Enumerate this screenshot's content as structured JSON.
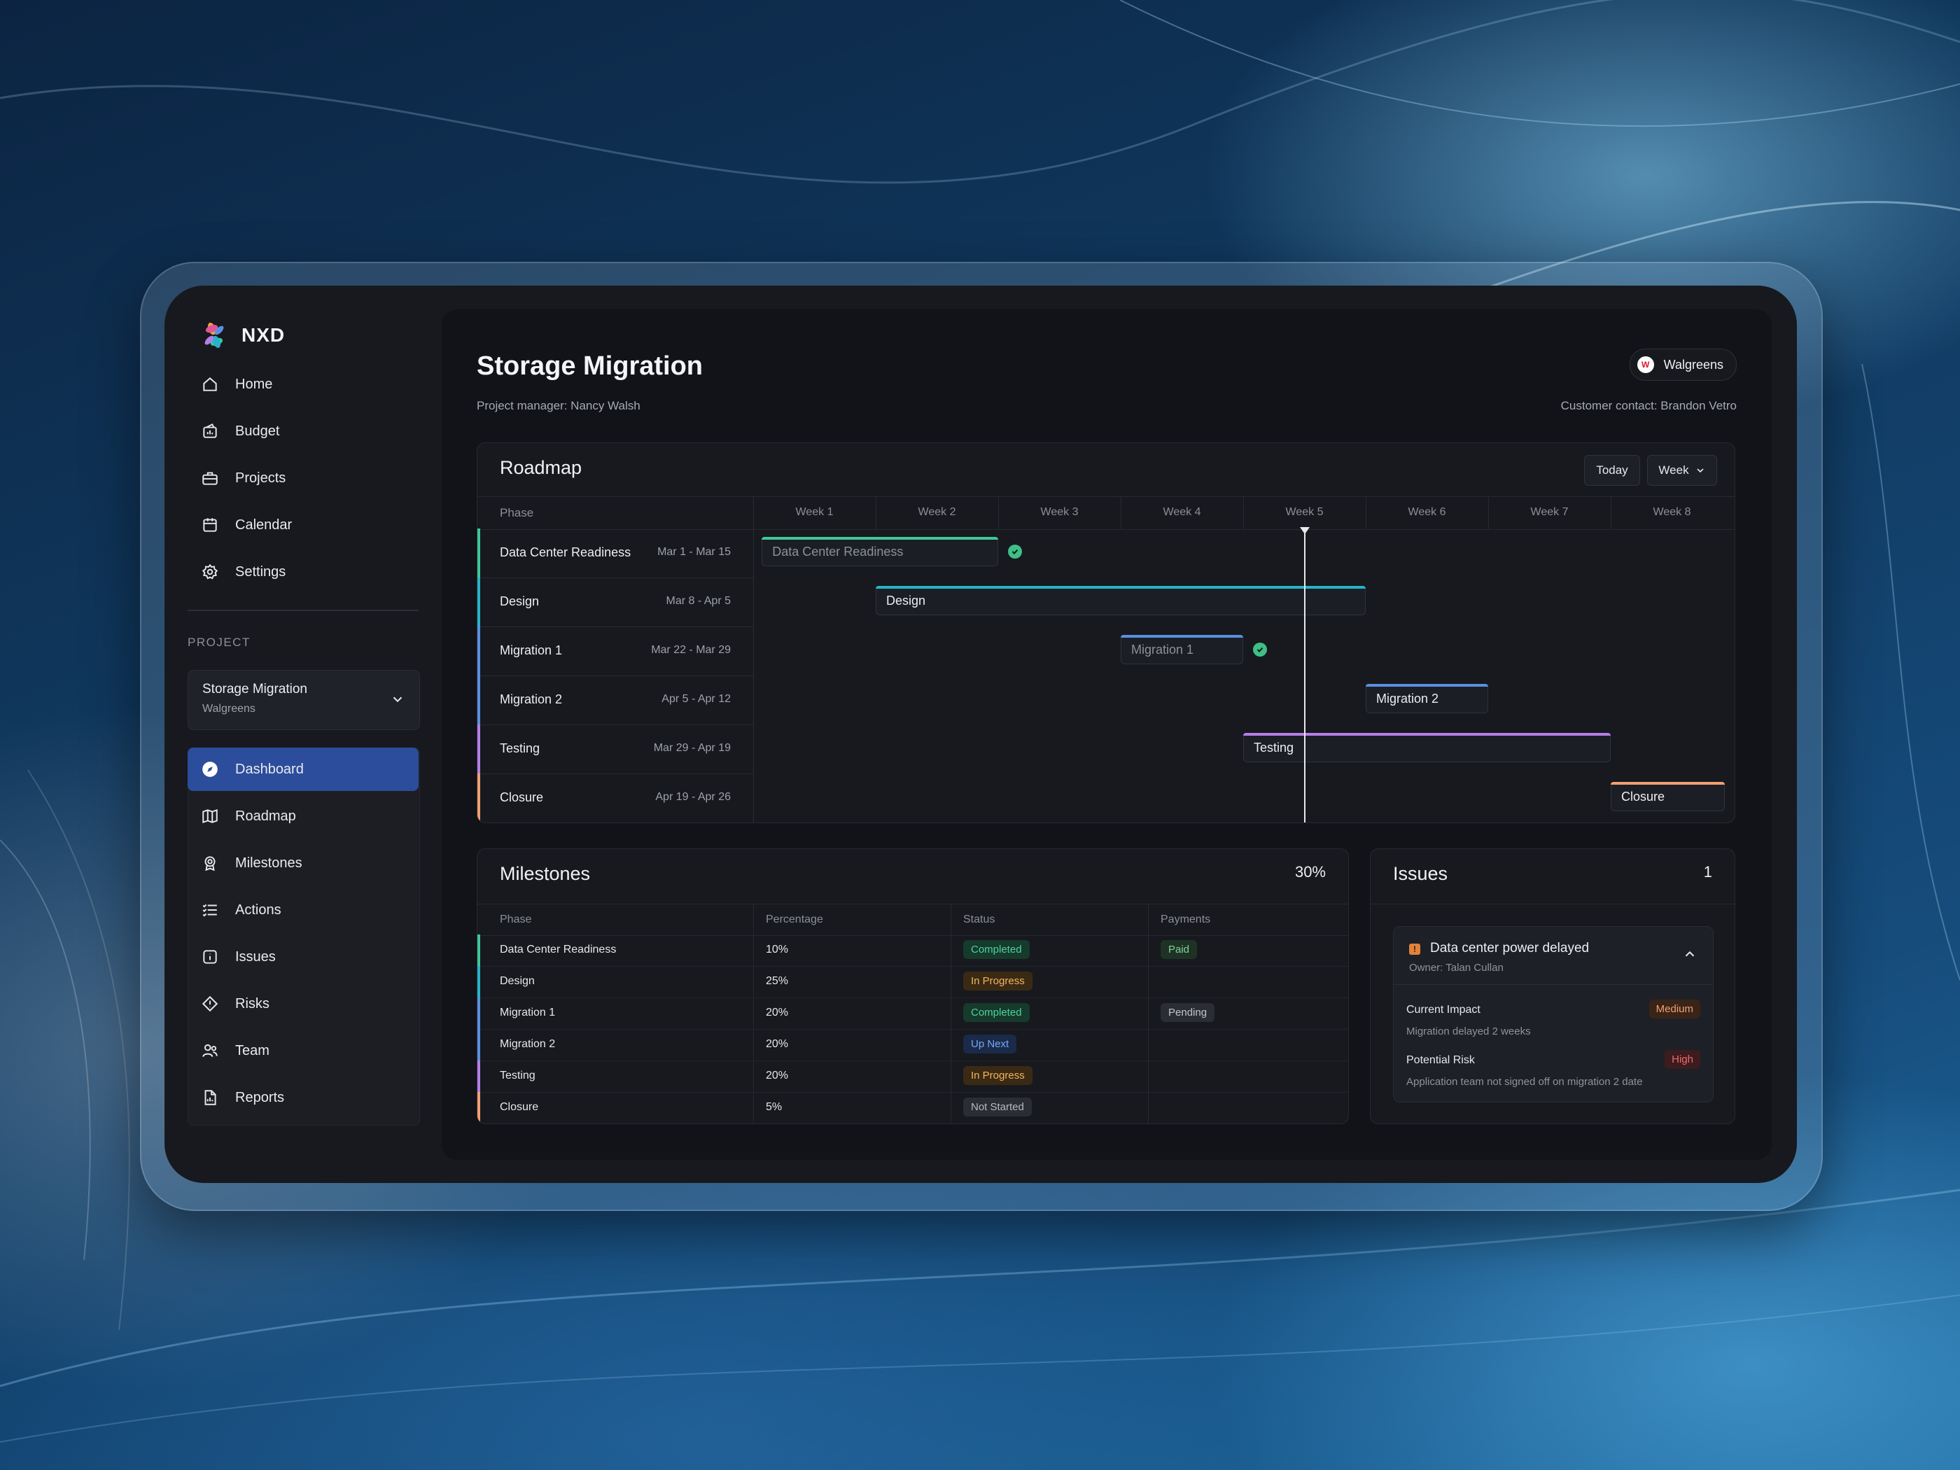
{
  "colors": {
    "accent": "#2c4d9b",
    "phase_readiness": "#3fc79a",
    "phase_design": "#27b3c9",
    "phase_migration1": "#5b8fe0",
    "phase_migration2": "#5b8fe0",
    "phase_testing": "#b57ee8",
    "phase_closure": "#f0a072"
  },
  "brand": {
    "name": "NXD",
    "logo_icon": "flower-logo-icon"
  },
  "nav": [
    {
      "label": "Home",
      "icon": "home-icon"
    },
    {
      "label": "Budget",
      "icon": "budget-icon"
    },
    {
      "label": "Projects",
      "icon": "briefcase-icon"
    },
    {
      "label": "Calendar",
      "icon": "calendar-icon"
    },
    {
      "label": "Settings",
      "icon": "gear-icon"
    }
  ],
  "project_section": {
    "label": "PROJECT",
    "selected_name": "Storage Migration",
    "selected_customer": "Walgreens"
  },
  "subnav": [
    {
      "label": "Dashboard",
      "icon": "compass-icon",
      "active": true
    },
    {
      "label": "Roadmap",
      "icon": "map-icon"
    },
    {
      "label": "Milestones",
      "icon": "milestone-icon"
    },
    {
      "label": "Actions",
      "icon": "list-icon"
    },
    {
      "label": "Issues",
      "icon": "info-icon"
    },
    {
      "label": "Risks",
      "icon": "alert-icon"
    },
    {
      "label": "Team",
      "icon": "team-icon"
    },
    {
      "label": "Reports",
      "icon": "report-icon"
    }
  ],
  "header": {
    "title": "Storage Migration",
    "project_manager": "Project manager: Nancy Walsh",
    "customer_contact": "Customer contact: Brandon Vetro",
    "customer": "Walgreens"
  },
  "roadmap": {
    "title": "Roadmap",
    "today_button": "Today",
    "scale_select": "Week",
    "phase_header": "Phase",
    "weeks": [
      "Week 1",
      "Week 2",
      "Week 3",
      "Week 4",
      "Week 5",
      "Week 6",
      "Week 7",
      "Week 8"
    ],
    "today_week": 5.5,
    "phases": [
      {
        "name": "Data Center Readiness",
        "dates": "Mar 1 - Mar 15",
        "start_week": 1.07,
        "end_week": 3.0,
        "done": true
      },
      {
        "name": "Design",
        "dates": "Mar 8 - Apr 5",
        "start_week": 2.0,
        "end_week": 6.0,
        "done": false
      },
      {
        "name": "Migration 1",
        "dates": "Mar 22 - Mar 29",
        "start_week": 4.0,
        "end_week": 5.0,
        "done": true
      },
      {
        "name": "Migration 2",
        "dates": "Apr 5 - Apr 12",
        "start_week": 6.0,
        "end_week": 7.0,
        "done": false
      },
      {
        "name": "Testing",
        "dates": "Mar 29 - Apr 19",
        "start_week": 5.0,
        "end_week": 8.0,
        "done": false
      },
      {
        "name": "Closure",
        "dates": "Apr 19 - Apr 26",
        "start_week": 8.0,
        "end_week": 8.93,
        "done": false
      }
    ]
  },
  "milestones": {
    "title": "Milestones",
    "total": "30%",
    "headers": [
      "Phase",
      "Percentage",
      "Status",
      "Payments"
    ],
    "rows": [
      {
        "phase": "Data Center Readiness",
        "percentage": "10%",
        "status": "Completed",
        "payment": "Paid"
      },
      {
        "phase": "Design",
        "percentage": "25%",
        "status": "In Progress",
        "payment": ""
      },
      {
        "phase": "Migration 1",
        "percentage": "20%",
        "status": "Completed",
        "payment": "Pending"
      },
      {
        "phase": "Migration 2",
        "percentage": "20%",
        "status": "Up Next",
        "payment": ""
      },
      {
        "phase": "Testing",
        "percentage": "20%",
        "status": "In Progress",
        "payment": ""
      },
      {
        "phase": "Closure",
        "percentage": "5%",
        "status": "Not Started",
        "payment": ""
      }
    ]
  },
  "issues": {
    "title": "Issues",
    "count": "1",
    "item": {
      "title": "Data center power delayed",
      "owner": "Owner: Talan Cullan",
      "impact_label": "Current Impact",
      "impact_level": "Medium",
      "impact_desc": "Migration delayed 2 weeks",
      "risk_label": "Potential Risk",
      "risk_level": "High",
      "risk_desc": "Application team not signed off on migration 2 date"
    }
  }
}
